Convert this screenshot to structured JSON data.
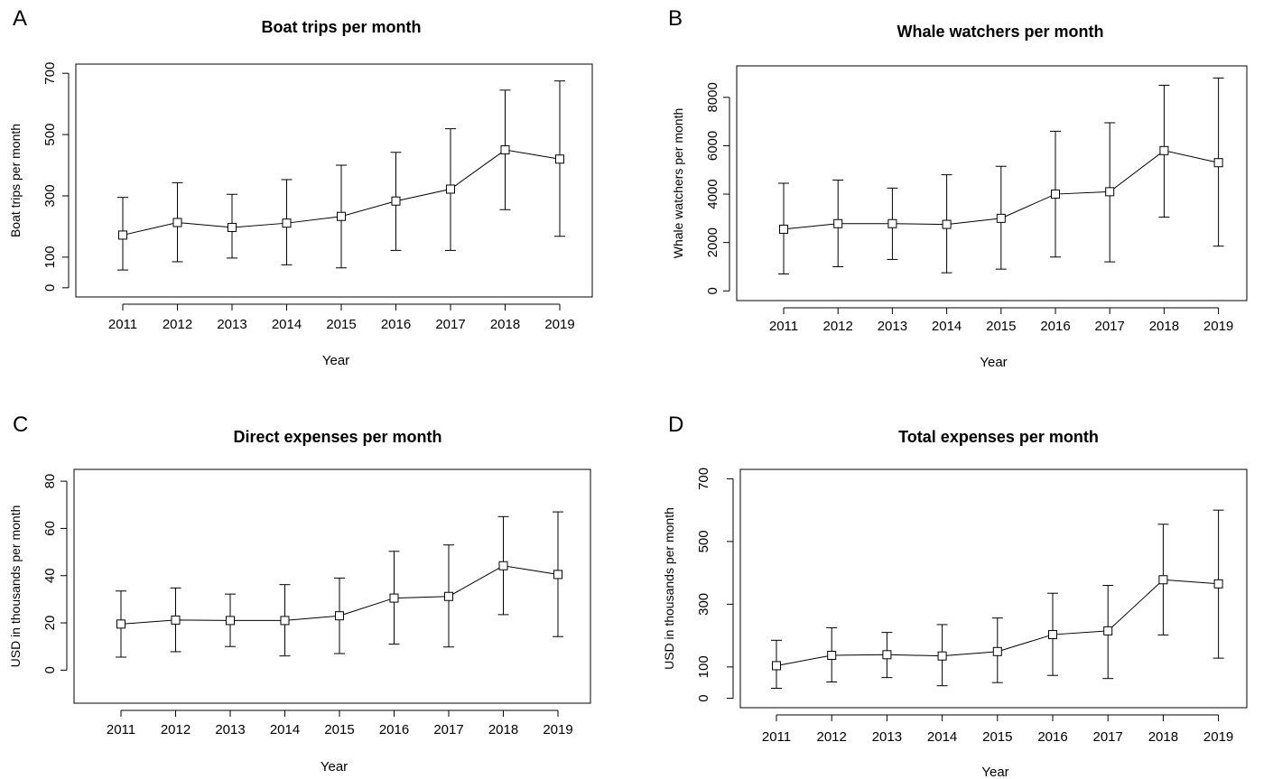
{
  "chart_data": [
    {
      "panel_letter": "A",
      "type": "line",
      "title": "Boat trips per month",
      "xlabel": "Year",
      "ylabel": "Boat trips per month",
      "x": [
        "2011",
        "2012",
        "2013",
        "2014",
        "2015",
        "2016",
        "2017",
        "2018",
        "2019"
      ],
      "y": [
        172,
        213,
        197,
        211,
        233,
        283,
        322,
        450,
        420
      ],
      "error_low": [
        58,
        85,
        97,
        75,
        65,
        122,
        122,
        255,
        168
      ],
      "error_high": [
        295,
        343,
        305,
        353,
        400,
        442,
        519,
        645,
        675
      ],
      "ylim": [
        -30,
        730
      ],
      "yticks": [
        0,
        100,
        300,
        500,
        700
      ],
      "marker": "open-square",
      "line_color": "#000000",
      "grid": false
    },
    {
      "panel_letter": "B",
      "type": "line",
      "title": "Whale watchers per month",
      "xlabel": "Year",
      "ylabel": "Whale watchers per month",
      "x": [
        "2011",
        "2012",
        "2013",
        "2014",
        "2015",
        "2016",
        "2017",
        "2018",
        "2019"
      ],
      "y": [
        2550,
        2780,
        2780,
        2750,
        3000,
        4000,
        4100,
        5800,
        5300
      ],
      "error_low": [
        700,
        1000,
        1300,
        750,
        900,
        1400,
        1200,
        3050,
        1850
      ],
      "error_high": [
        4450,
        4580,
        4250,
        4800,
        5150,
        6600,
        6950,
        8500,
        8800
      ],
      "ylim": [
        -400,
        9300
      ],
      "yticks": [
        0,
        2000,
        4000,
        6000,
        8000
      ],
      "marker": "open-square",
      "line_color": "#000000",
      "grid": false
    },
    {
      "panel_letter": "C",
      "type": "line",
      "title": "Direct expenses per month",
      "xlabel": "Year",
      "ylabel": "USD in thousands per month",
      "x": [
        "2011",
        "2012",
        "2013",
        "2014",
        "2015",
        "2016",
        "2017",
        "2018",
        "2019"
      ],
      "y": [
        19.5,
        21.2,
        21.0,
        21.0,
        23.0,
        30.5,
        31.2,
        44.2,
        40.5
      ],
      "error_low": [
        5.5,
        7.8,
        10.0,
        6.0,
        7.0,
        11.0,
        9.8,
        23.5,
        14.2
      ],
      "error_high": [
        33.5,
        34.8,
        32.2,
        36.2,
        39.0,
        50.3,
        53.0,
        65.0,
        67.0
      ],
      "ylim": [
        -14,
        85
      ],
      "yticks": [
        0,
        20,
        40,
        60,
        80
      ],
      "marker": "open-square",
      "line_color": "#000000",
      "grid": false
    },
    {
      "panel_letter": "D",
      "type": "line",
      "title": "Total expenses per month",
      "xlabel": "Year",
      "ylabel": "USD in thousands per month",
      "x": [
        "2011",
        "2012",
        "2013",
        "2014",
        "2015",
        "2016",
        "2017",
        "2018",
        "2019"
      ],
      "y": [
        104,
        137,
        139,
        135,
        149,
        203,
        215,
        378,
        365
      ],
      "error_low": [
        32,
        52,
        66,
        40,
        50,
        73,
        63,
        202,
        128
      ],
      "error_high": [
        185,
        225,
        210,
        235,
        256,
        335,
        360,
        555,
        600
      ],
      "ylim": [
        -30,
        730
      ],
      "yticks": [
        0,
        100,
        300,
        500,
        700
      ],
      "marker": "open-square",
      "line_color": "#000000",
      "grid": false
    }
  ]
}
